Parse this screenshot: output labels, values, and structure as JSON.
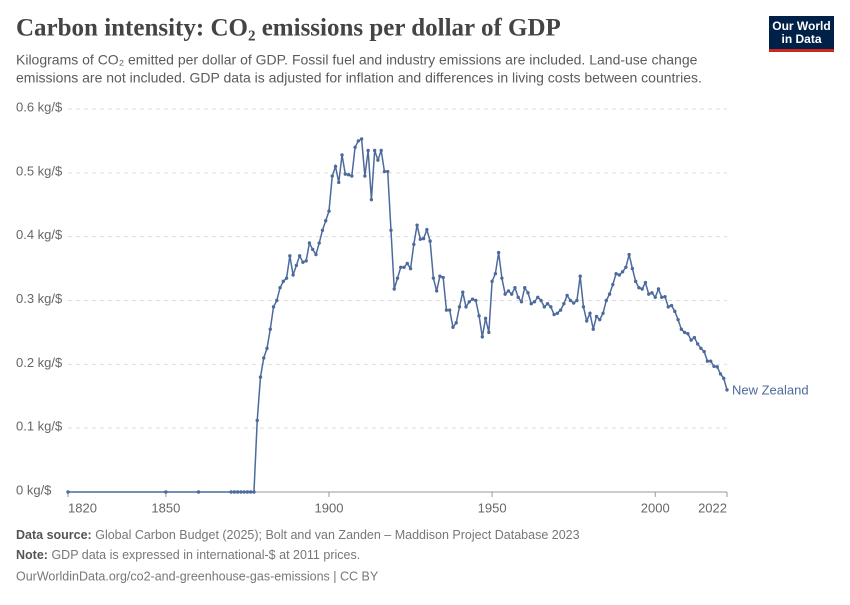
{
  "chart_data": {
    "type": "line",
    "title": "Carbon intensity: CO₂ emissions per dollar of GDP",
    "subtitle": [
      "Kilograms of CO₂ emitted per dollar of GDP. Fossil fuel and industry emissions are included. Land-use change",
      "emissions are not included. GDP data is adjusted for inflation and differences in living costs between countries."
    ],
    "logo": [
      "Our World",
      "in Data"
    ],
    "source_label": "Data source:",
    "source": "Global Carbon Budget (2025); Bolt and van Zanden – Maddison Project Database 2023",
    "note_label": "Note:",
    "note": "GDP data is expressed in international-$ at 2011 prices.",
    "url": "OurWorldinData.org/co2-and-greenhouse-gas-emissions | CC BY",
    "xlim": [
      1820,
      2022
    ],
    "xticks": [
      1820,
      1850,
      1900,
      1950,
      2000,
      2022
    ],
    "ylim": [
      0,
      0.6
    ],
    "yticks": [
      {
        "value": 0,
        "label": "0 kg/$"
      },
      {
        "value": 0.1,
        "label": "0.1 kg/$"
      },
      {
        "value": 0.2,
        "label": "0.2 kg/$"
      },
      {
        "value": 0.3,
        "label": "0.3 kg/$"
      },
      {
        "value": 0.4,
        "label": "0.4 kg/$"
      },
      {
        "value": 0.5,
        "label": "0.5 kg/$"
      },
      {
        "value": 0.6,
        "label": "0.6 kg/$"
      }
    ],
    "grid": true,
    "x": [
      1820,
      1850,
      1860,
      1870,
      1871,
      1872,
      1873,
      1874,
      1875,
      1876,
      1877,
      1878,
      1879,
      1880,
      1881,
      1882,
      1883,
      1884,
      1885,
      1886,
      1887,
      1888,
      1889,
      1890,
      1891,
      1892,
      1893,
      1894,
      1895,
      1896,
      1897,
      1898,
      1899,
      1900,
      1901,
      1902,
      1903,
      1904,
      1905,
      1906,
      1907,
      1908,
      1909,
      1910,
      1911,
      1912,
      1913,
      1914,
      1915,
      1916,
      1917,
      1918,
      1919,
      1920,
      1921,
      1922,
      1923,
      1924,
      1925,
      1926,
      1927,
      1928,
      1929,
      1930,
      1931,
      1932,
      1933,
      1934,
      1935,
      1936,
      1937,
      1938,
      1939,
      1940,
      1941,
      1942,
      1943,
      1944,
      1945,
      1946,
      1947,
      1948,
      1949,
      1950,
      1951,
      1952,
      1953,
      1954,
      1955,
      1956,
      1957,
      1958,
      1959,
      1960,
      1961,
      1962,
      1963,
      1964,
      1965,
      1966,
      1967,
      1968,
      1969,
      1970,
      1971,
      1972,
      1973,
      1974,
      1975,
      1976,
      1977,
      1978,
      1979,
      1980,
      1981,
      1982,
      1983,
      1984,
      1985,
      1986,
      1987,
      1988,
      1989,
      1990,
      1991,
      1992,
      1993,
      1994,
      1995,
      1996,
      1997,
      1998,
      1999,
      2000,
      2001,
      2002,
      2003,
      2004,
      2005,
      2006,
      2007,
      2008,
      2009,
      2010,
      2011,
      2012,
      2013,
      2014,
      2015,
      2016,
      2017,
      2018,
      2019,
      2020,
      2021,
      2022
    ],
    "series": [
      {
        "name": "New Zealand",
        "color": "#4c6a9c",
        "values": [
          0,
          0,
          0,
          0,
          0,
          0,
          0,
          0,
          0,
          0,
          0,
          0.112,
          0.18,
          0.21,
          0.225,
          0.255,
          0.29,
          0.3,
          0.32,
          0.33,
          0.335,
          0.37,
          0.34,
          0.355,
          0.37,
          0.36,
          0.362,
          0.39,
          0.38,
          0.372,
          0.39,
          0.41,
          0.425,
          0.44,
          0.495,
          0.51,
          0.485,
          0.528,
          0.498,
          0.497,
          0.495,
          0.54,
          0.55,
          0.553,
          0.495,
          0.535,
          0.458,
          0.535,
          0.52,
          0.535,
          0.502,
          0.502,
          0.41,
          0.318,
          0.335,
          0.352,
          0.352,
          0.358,
          0.35,
          0.388,
          0.418,
          0.396,
          0.397,
          0.411,
          0.393,
          0.335,
          0.315,
          0.338,
          0.336,
          0.285,
          0.285,
          0.258,
          0.265,
          0.29,
          0.313,
          0.29,
          0.298,
          0.302,
          0.3,
          0.276,
          0.243,
          0.272,
          0.25,
          0.33,
          0.342,
          0.375,
          0.335,
          0.31,
          0.315,
          0.31,
          0.32,
          0.305,
          0.298,
          0.32,
          0.312,
          0.295,
          0.298,
          0.305,
          0.3,
          0.29,
          0.295,
          0.29,
          0.278,
          0.28,
          0.285,
          0.295,
          0.308,
          0.3,
          0.296,
          0.3,
          0.338,
          0.29,
          0.268,
          0.28,
          0.255,
          0.275,
          0.27,
          0.28,
          0.3,
          0.31,
          0.325,
          0.342,
          0.34,
          0.345,
          0.352,
          0.372,
          0.35,
          0.33,
          0.32,
          0.318,
          0.328,
          0.31,
          0.312,
          0.305,
          0.318,
          0.305,
          0.306,
          0.29,
          0.292,
          0.283,
          0.27,
          0.255,
          0.25,
          0.248,
          0.238,
          0.242,
          0.232,
          0.225,
          0.22,
          0.205,
          0.205,
          0.197,
          0.196,
          0.185,
          0.178,
          0.16
        ]
      }
    ]
  }
}
